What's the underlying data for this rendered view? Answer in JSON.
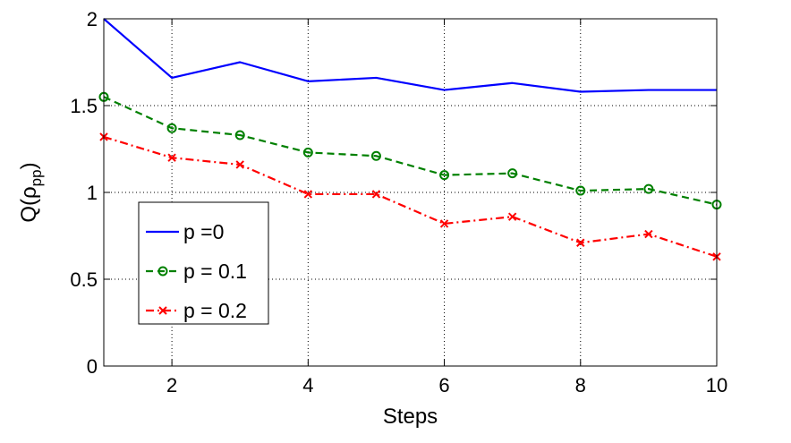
{
  "chart_data": {
    "type": "line",
    "xlabel": "Steps",
    "ylabel": "Q(ρ",
    "ylabel_sub": "pp",
    "ylabel_close": ")",
    "xlim": [
      1,
      10
    ],
    "ylim": [
      0,
      2
    ],
    "x_ticks": [
      2,
      4,
      6,
      8,
      10
    ],
    "y_ticks": [
      0,
      0.5,
      1,
      1.5,
      2
    ],
    "grid": true,
    "legend_position": "bottom-left",
    "x": [
      1,
      2,
      3,
      4,
      5,
      6,
      7,
      8,
      9,
      10
    ],
    "series": [
      {
        "name": "p =0",
        "color": "#0000ff",
        "style": "solid",
        "marker": "none",
        "values": [
          2.0,
          1.66,
          1.75,
          1.64,
          1.66,
          1.59,
          1.63,
          1.58,
          1.59,
          1.59
        ]
      },
      {
        "name": "p = 0.1",
        "color": "#008000",
        "style": "dashed",
        "marker": "circle",
        "values": [
          1.55,
          1.37,
          1.33,
          1.23,
          1.21,
          1.1,
          1.11,
          1.01,
          1.02,
          0.93
        ]
      },
      {
        "name": "p = 0.2",
        "color": "#ff0000",
        "style": "dashdot",
        "marker": "x",
        "values": [
          1.32,
          1.2,
          1.16,
          0.99,
          0.99,
          0.82,
          0.86,
          0.71,
          0.76,
          0.63
        ]
      }
    ]
  }
}
